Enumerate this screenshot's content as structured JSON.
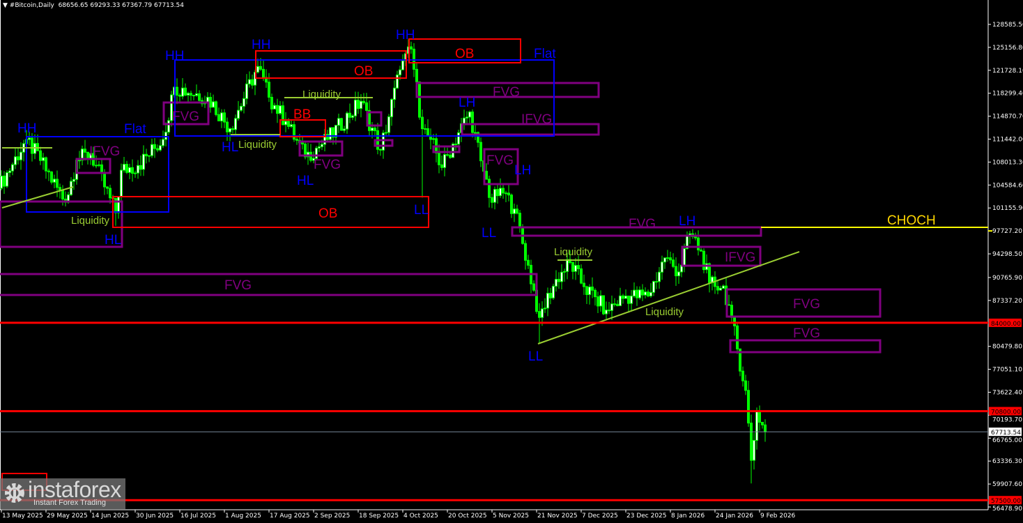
{
  "header": {
    "symbol": "#Bitcoin,Daily",
    "ohlc": "68656.65 69293.33 67367.79 67713.54",
    "menu_icon": "triangle-down-icon"
  },
  "colors": {
    "background": "#000000",
    "candle": "#00ff00",
    "structure_label": "#0000ff",
    "order_block": "#ff0000",
    "fvg": "#800080",
    "liquidity": "#9acd32",
    "choch": "#ffff00",
    "level_line": "#ff0000",
    "bid_line": "#778899"
  },
  "annotations": {
    "hh": "HH",
    "hl": "HL",
    "lh": "LH",
    "ll": "LL",
    "flat": "Flat",
    "ob": "OB",
    "bb": "BB",
    "fvg": "FVG",
    "ifvg": "IFVG",
    "liquidity": "Liquidity",
    "choch": "CHOCH"
  },
  "logo": {
    "name": "instaforex",
    "tagline": "Instant Forex Trading",
    "icon": "gear-icon"
  },
  "chart_data": {
    "type": "candlestick",
    "title": "#Bitcoin,Daily",
    "last_ohlc": {
      "open": 68656.65,
      "high": 69293.33,
      "low": 67367.79,
      "close": 67713.54
    },
    "ylim": [
      56478.9,
      130000
    ],
    "y_ticks": [
      128585.5,
      125156.8,
      121728.1,
      118299.4,
      114870.7,
      111442.0,
      108013.3,
      104584.6,
      101155.9,
      97727.2,
      94298.5,
      90765.9,
      87337.2,
      80479.8,
      77051.1,
      73622.4,
      70193.7,
      66765.0,
      63336.3,
      59907.6,
      56478.9
    ],
    "x_ticks": [
      {
        "label": "13 May 2025",
        "date": "2025-05-13"
      },
      {
        "label": "29 May 2025",
        "date": "2025-05-29"
      },
      {
        "label": "14 Jun 2025",
        "date": "2025-06-14"
      },
      {
        "label": "30 Jun 2025",
        "date": "2025-06-30"
      },
      {
        "label": "16 Jul 2025",
        "date": "2025-07-16"
      },
      {
        "label": "1 Aug 2025",
        "date": "2025-08-01"
      },
      {
        "label": "17 Aug 2025",
        "date": "2025-08-17"
      },
      {
        "label": "2 Sep 2025",
        "date": "2025-09-02"
      },
      {
        "label": "18 Sep 2025",
        "date": "2025-09-18"
      },
      {
        "label": "4 Oct 2025",
        "date": "2025-10-04"
      },
      {
        "label": "20 Oct 2025",
        "date": "2025-10-20"
      },
      {
        "label": "5 Nov 2025",
        "date": "2025-11-05"
      },
      {
        "label": "21 Nov 2025",
        "date": "2025-11-21"
      },
      {
        "label": "7 Dec 2025",
        "date": "2025-12-07"
      },
      {
        "label": "23 Dec 2025",
        "date": "2025-12-23"
      },
      {
        "label": "8 Jan 2026",
        "date": "2026-01-08"
      },
      {
        "label": "24 Jan 2026",
        "date": "2026-01-24"
      },
      {
        "label": "9 Feb 2026",
        "date": "2026-02-09"
      }
    ],
    "levels": [
      {
        "price": 84000.0,
        "label": "84000.00"
      },
      {
        "price": 70800.0,
        "label": "70800.00"
      },
      {
        "price": 57500.0,
        "label": "57500.00"
      }
    ],
    "bid": {
      "price": 67713.54,
      "label": "67713.54"
    },
    "choch_level": 97727.2,
    "closes": [
      {
        "date": "2025-05-12",
        "close": 104100
      },
      {
        "date": "2025-05-22",
        "close": 111400
      },
      {
        "date": "2025-05-27",
        "close": 108250
      },
      {
        "date": "2025-06-05",
        "close": 102000
      },
      {
        "date": "2025-06-09",
        "close": 108300
      },
      {
        "date": "2025-06-14",
        "close": 109300
      },
      {
        "date": "2025-06-23",
        "close": 100450,
        "low": 98500
      },
      {
        "date": "2025-06-25",
        "close": 106800
      },
      {
        "date": "2025-07-01",
        "close": 107500
      },
      {
        "date": "2025-07-10",
        "close": 111400
      },
      {
        "date": "2025-07-14",
        "close": 119200
      },
      {
        "date": "2025-07-26",
        "close": 117700
      },
      {
        "date": "2025-08-03",
        "close": 113000
      },
      {
        "date": "2025-08-13",
        "close": 122300
      },
      {
        "date": "2025-08-17",
        "close": 117700
      },
      {
        "date": "2025-08-23",
        "close": 114100
      },
      {
        "date": "2025-08-30",
        "close": 108800
      },
      {
        "date": "2025-09-07",
        "close": 111400
      },
      {
        "date": "2025-09-19",
        "close": 117100
      },
      {
        "date": "2025-09-26",
        "close": 109800
      },
      {
        "date": "2025-10-03",
        "close": 121800
      },
      {
        "date": "2025-10-07",
        "close": 124900
      },
      {
        "date": "2025-10-11",
        "close": 113000,
        "low": 102700
      },
      {
        "date": "2025-10-14",
        "close": 111400
      },
      {
        "date": "2025-10-18",
        "close": 107200
      },
      {
        "date": "2025-10-24",
        "close": 112400
      },
      {
        "date": "2025-10-28",
        "close": 115500
      },
      {
        "date": "2025-11-01",
        "close": 108200
      },
      {
        "date": "2025-11-05",
        "close": 102000
      },
      {
        "date": "2025-11-08",
        "close": 104100
      },
      {
        "date": "2025-11-13",
        "close": 101000
      },
      {
        "date": "2025-11-18",
        "close": 92600
      },
      {
        "date": "2025-11-22",
        "close": 84800,
        "low": 80900
      },
      {
        "date": "2025-11-28",
        "close": 90500
      },
      {
        "date": "2025-12-03",
        "close": 93000
      },
      {
        "date": "2025-12-08",
        "close": 89400
      },
      {
        "date": "2025-12-16",
        "close": 85900
      },
      {
        "date": "2025-12-23",
        "close": 88000
      },
      {
        "date": "2025-12-31",
        "close": 88000
      },
      {
        "date": "2026-01-06",
        "close": 93700
      },
      {
        "date": "2026-01-11",
        "close": 91600
      },
      {
        "date": "2026-01-15",
        "close": 97300
      },
      {
        "date": "2026-01-19",
        "close": 94700
      },
      {
        "date": "2026-01-22",
        "close": 90000
      },
      {
        "date": "2026-01-27",
        "close": 89500
      },
      {
        "date": "2026-01-30",
        "close": 84800
      },
      {
        "date": "2026-02-01",
        "close": 80100
      },
      {
        "date": "2026-02-04",
        "close": 73900
      },
      {
        "date": "2026-02-06",
        "close": 63450,
        "low": 60000
      },
      {
        "date": "2026-02-08",
        "close": 70700
      },
      {
        "date": "2026-02-11",
        "close": 67713.54
      }
    ]
  }
}
